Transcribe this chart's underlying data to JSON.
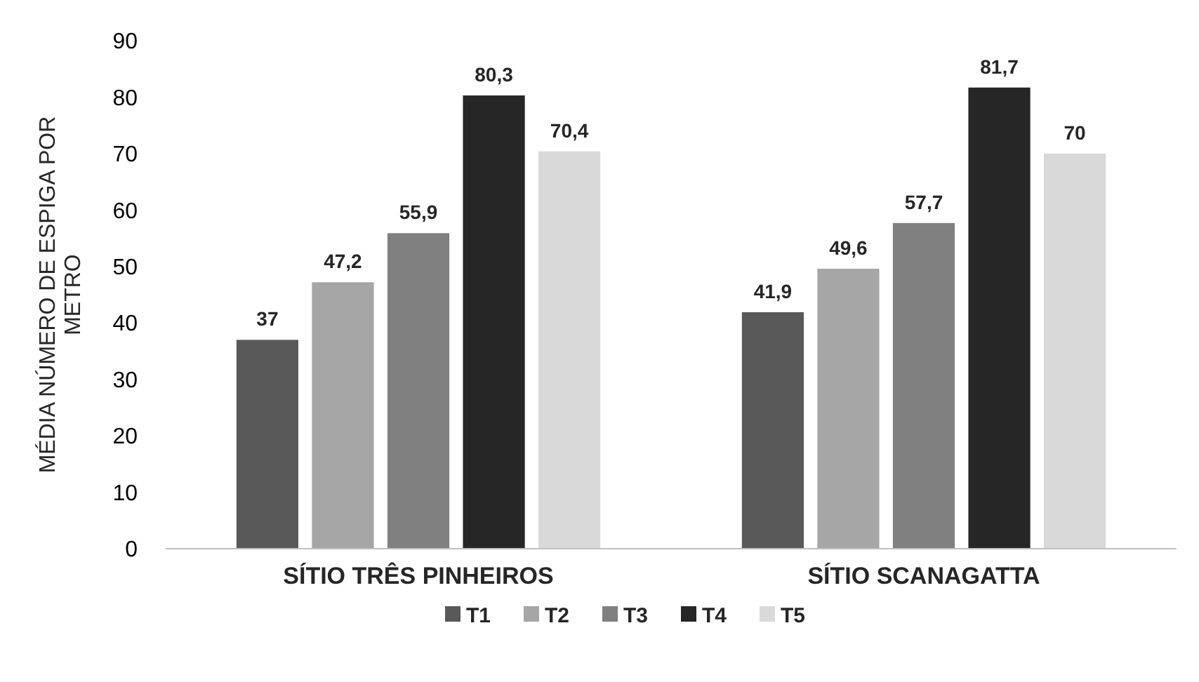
{
  "chart_data": {
    "type": "bar",
    "ylabel": "MÉDIA NÚMERO DE ESPIGA POR METRO",
    "categories": [
      "SÍTIO TRÊS PINHEIROS",
      "SÍTIO SCANAGATTA"
    ],
    "series": [
      {
        "name": "T1",
        "color": "#595959",
        "values": [
          37,
          41.9
        ],
        "value_labels": [
          "37",
          "41,9"
        ]
      },
      {
        "name": "T2",
        "color": "#a6a6a6",
        "values": [
          47.2,
          49.6
        ],
        "value_labels": [
          "47,2",
          "49,6"
        ]
      },
      {
        "name": "T3",
        "color": "#808080",
        "values": [
          55.9,
          57.7
        ],
        "value_labels": [
          "55,9",
          "57,7"
        ]
      },
      {
        "name": "T4",
        "color": "#262626",
        "values": [
          80.3,
          81.7
        ],
        "value_labels": [
          "80,3",
          "81,7"
        ]
      },
      {
        "name": "T5",
        "color": "#d9d9d9",
        "values": [
          70.4,
          70
        ],
        "value_labels": [
          "70,4",
          "70"
        ]
      }
    ],
    "ylim": [
      0,
      90
    ],
    "yticks": [
      0,
      10,
      20,
      30,
      40,
      50,
      60,
      70,
      80,
      90
    ],
    "legend": "bottom",
    "grid": false
  }
}
